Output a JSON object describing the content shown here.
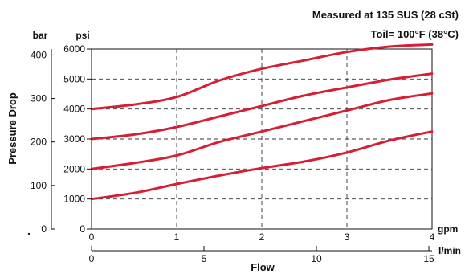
{
  "chart_data": {
    "type": "line",
    "annotation_line1": "Measured at 135 SUS  (28 cSt)",
    "annotation_line2": "Toil= 100°F  (38°C)",
    "ylabel": "Pressure Drop",
    "xlabel": "Flow",
    "y_unit_bar": "bar",
    "y_unit_psi": "psi",
    "x_unit_gpm": "gpm",
    "x_unit_lmin": "l/min",
    "stray_mark": ".",
    "psi_ticks": [
      "0",
      "1000",
      "2000",
      "3000",
      "4000",
      "5000",
      "6000"
    ],
    "bar_ticks": [
      "0",
      "100",
      "200",
      "300",
      "400"
    ],
    "gpm_ticks": [
      "0",
      "1",
      "2",
      "3",
      "4"
    ],
    "lmin_ticks": [
      "0",
      "5",
      "10",
      "15"
    ],
    "xlim": [
      0,
      4
    ],
    "ylim": [
      0,
      6000
    ],
    "grid": "dashed",
    "series_color": "#d81e34",
    "series": [
      {
        "x": [
          0,
          0.5,
          1,
          1.5,
          2,
          2.5,
          3,
          3.5,
          4
        ],
        "values": [
          1000,
          1200,
          1500,
          1780,
          2030,
          2250,
          2550,
          2950,
          3250
        ]
      },
      {
        "x": [
          0,
          0.5,
          1,
          1.5,
          2,
          2.5,
          3,
          3.5,
          4
        ],
        "values": [
          2000,
          2200,
          2450,
          2900,
          3250,
          3600,
          3950,
          4300,
          4520
        ]
      },
      {
        "x": [
          0,
          0.5,
          1,
          1.5,
          2,
          2.5,
          3,
          3.5,
          4
        ],
        "values": [
          3000,
          3150,
          3400,
          3750,
          4100,
          4450,
          4720,
          4980,
          5180
        ]
      },
      {
        "x": [
          0,
          0.5,
          1,
          1.5,
          2,
          2.5,
          3,
          3.5,
          4
        ],
        "values": [
          4000,
          4150,
          4400,
          4950,
          5340,
          5620,
          5900,
          6080,
          6150
        ]
      }
    ]
  }
}
